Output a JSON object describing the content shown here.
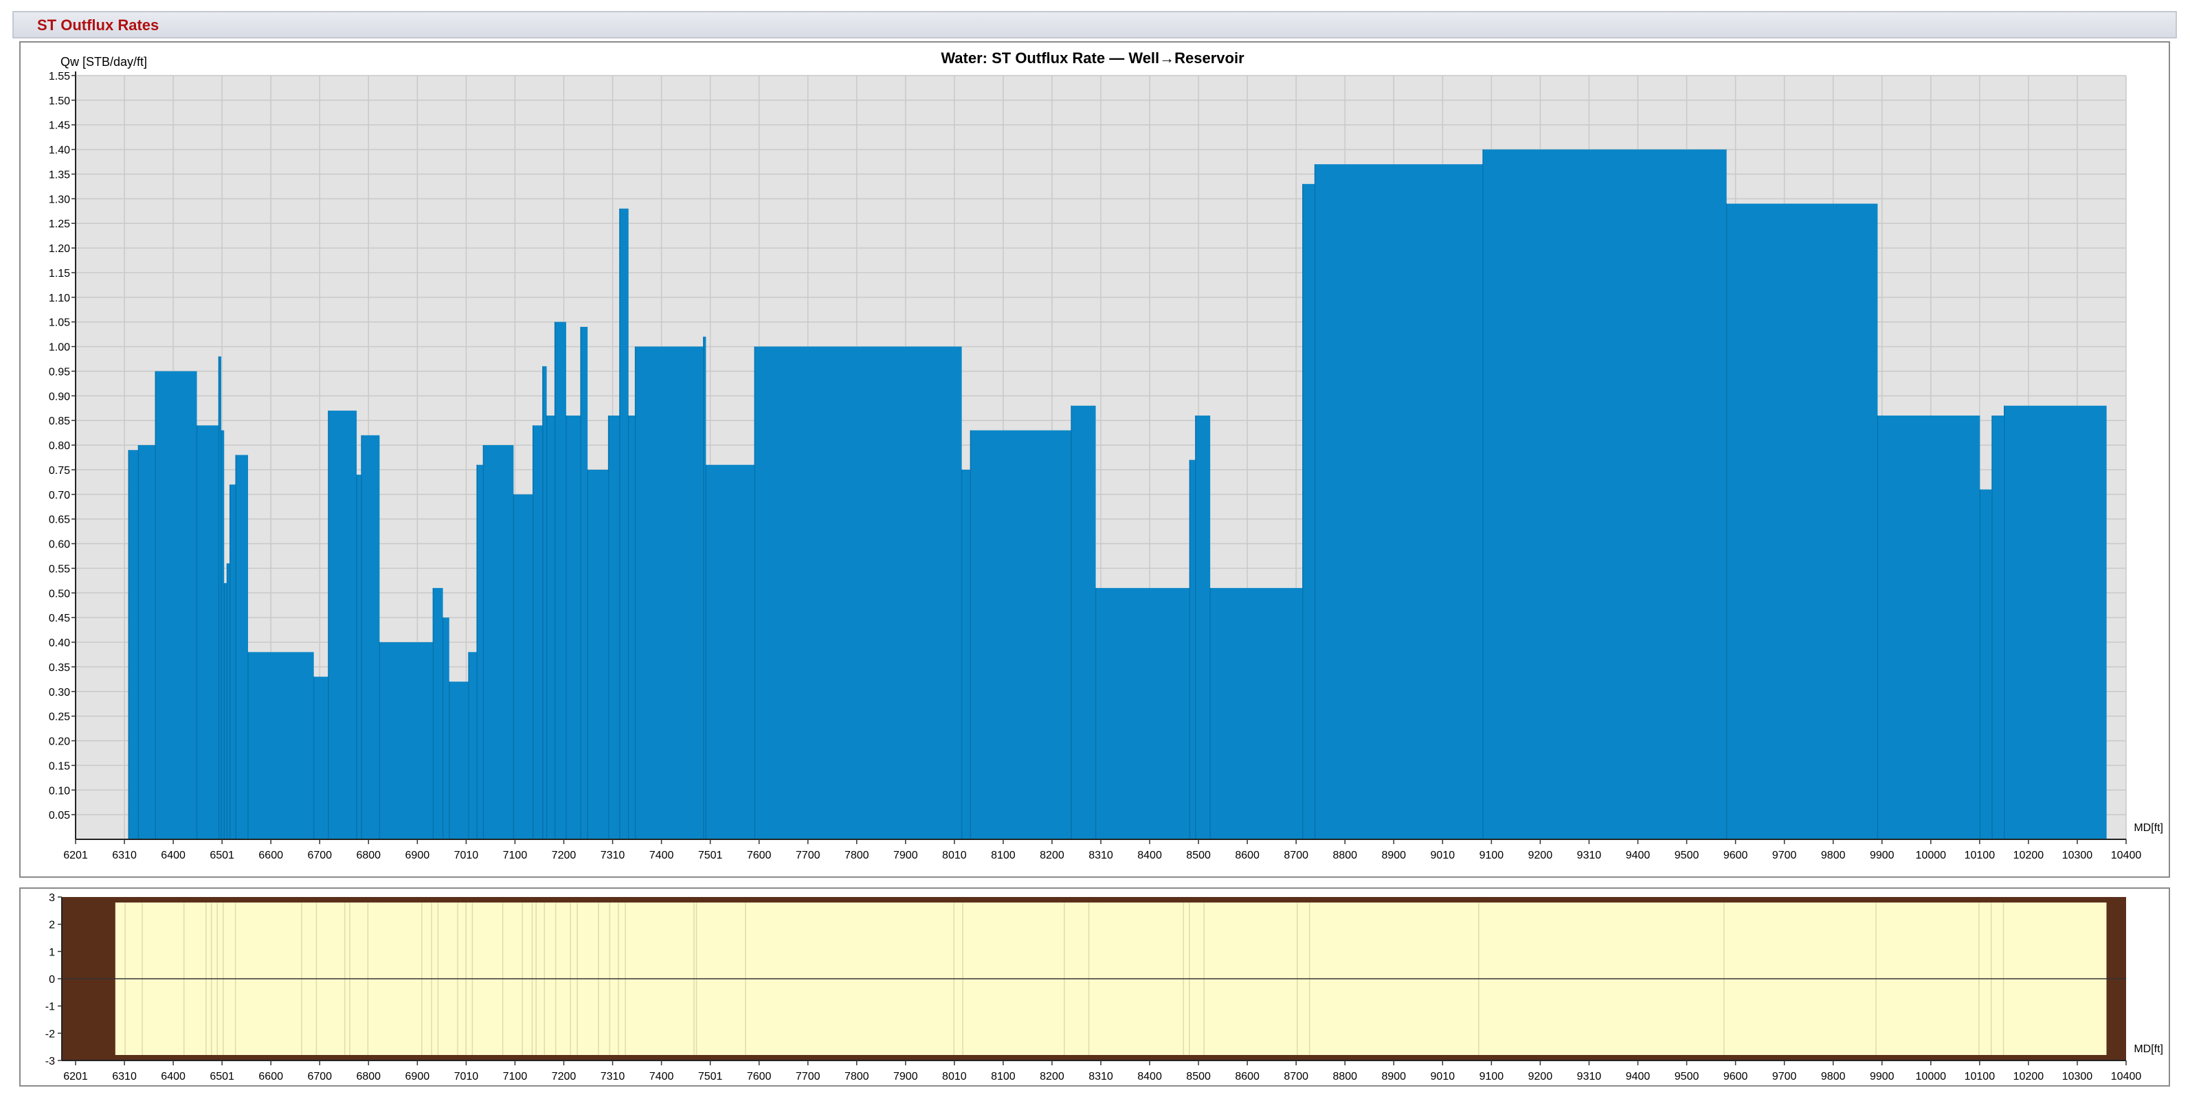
{
  "panel": {
    "title": "ST Outflux Rates"
  },
  "colors": {
    "bar": "#0a86c8",
    "bar_edge": "#0672ae",
    "plot_bg": "#e3e3e3",
    "grid": "#c9c9c9",
    "title_red": "#b01010",
    "mini_bg": "#fffccc",
    "mini_border": "#5a2f1a",
    "mini_shadow": "#3c3c3c"
  },
  "chart_data": [
    {
      "type": "bar",
      "title": "Water: ST Outflux Rate — Well→Reservoir",
      "ylabel": "Qw [STB/day/ft]",
      "xlabel": "MD[ft]",
      "ylim": [
        0,
        1.55
      ],
      "xlim": [
        6201,
        10410
      ],
      "grid": true,
      "y_ticks": [
        "0.05",
        "0.10",
        "0.15",
        "0.20",
        "0.25",
        "0.30",
        "0.35",
        "0.40",
        "0.45",
        "0.50",
        "0.55",
        "0.60",
        "0.65",
        "0.70",
        "0.75",
        "0.80",
        "0.85",
        "0.90",
        "0.95",
        "1.00",
        "1.05",
        "1.10",
        "1.15",
        "1.20",
        "1.25",
        "1.30",
        "1.35",
        "1.40",
        "1.45",
        "1.50",
        "1.55"
      ],
      "x_ticks": [
        "6201",
        "6310",
        "6400",
        "6501",
        "6600",
        "6700",
        "6800",
        "6900",
        "7010",
        "7100",
        "7200",
        "7310",
        "7400",
        "7501",
        "7600",
        "7700",
        "7800",
        "7900",
        "8010",
        "8100",
        "8200",
        "8310",
        "8400",
        "8500",
        "8600",
        "8700",
        "8800",
        "8900",
        "9010",
        "9100",
        "9200",
        "9310",
        "9400",
        "9500",
        "9600",
        "9700",
        "9800",
        "9900",
        "10000",
        "10100",
        "10200",
        "10300",
        "10400"
      ],
      "segments": [
        {
          "x0": 6310,
          "x1": 6330,
          "value": 0.79
        },
        {
          "x0": 6330,
          "x1": 6365,
          "value": 0.8
        },
        {
          "x0": 6365,
          "x1": 6450,
          "value": 0.95
        },
        {
          "x0": 6450,
          "x1": 6495,
          "value": 0.84
        },
        {
          "x0": 6495,
          "x1": 6500,
          "value": 0.98
        },
        {
          "x0": 6500,
          "x1": 6506,
          "value": 0.83
        },
        {
          "x0": 6506,
          "x1": 6512,
          "value": 0.52
        },
        {
          "x0": 6512,
          "x1": 6518,
          "value": 0.56
        },
        {
          "x0": 6518,
          "x1": 6530,
          "value": 0.72
        },
        {
          "x0": 6530,
          "x1": 6555,
          "value": 0.78
        },
        {
          "x0": 6555,
          "x1": 6690,
          "value": 0.38
        },
        {
          "x0": 6690,
          "x1": 6720,
          "value": 0.33
        },
        {
          "x0": 6720,
          "x1": 6778,
          "value": 0.87
        },
        {
          "x0": 6778,
          "x1": 6788,
          "value": 0.74
        },
        {
          "x0": 6788,
          "x1": 6825,
          "value": 0.82
        },
        {
          "x0": 6825,
          "x1": 6935,
          "value": 0.4
        },
        {
          "x0": 6935,
          "x1": 6955,
          "value": 0.51
        },
        {
          "x0": 6955,
          "x1": 6968,
          "value": 0.45
        },
        {
          "x0": 6968,
          "x1": 7008,
          "value": 0.32
        },
        {
          "x0": 7008,
          "x1": 7025,
          "value": 0.38
        },
        {
          "x0": 7025,
          "x1": 7038,
          "value": 0.76
        },
        {
          "x0": 7038,
          "x1": 7100,
          "value": 0.8
        },
        {
          "x0": 7100,
          "x1": 7140,
          "value": 0.7
        },
        {
          "x0": 7140,
          "x1": 7160,
          "value": 0.84
        },
        {
          "x0": 7160,
          "x1": 7168,
          "value": 0.96
        },
        {
          "x0": 7168,
          "x1": 7185,
          "value": 0.86
        },
        {
          "x0": 7185,
          "x1": 7208,
          "value": 1.05
        },
        {
          "x0": 7208,
          "x1": 7238,
          "value": 0.86
        },
        {
          "x0": 7238,
          "x1": 7252,
          "value": 1.04
        },
        {
          "x0": 7252,
          "x1": 7295,
          "value": 0.75
        },
        {
          "x0": 7295,
          "x1": 7318,
          "value": 0.86
        },
        {
          "x0": 7318,
          "x1": 7336,
          "value": 1.28
        },
        {
          "x0": 7336,
          "x1": 7350,
          "value": 0.86
        },
        {
          "x0": 7350,
          "x1": 7490,
          "value": 1.0
        },
        {
          "x0": 7490,
          "x1": 7495,
          "value": 1.02
        },
        {
          "x0": 7495,
          "x1": 7595,
          "value": 0.76
        },
        {
          "x0": 7595,
          "x1": 8020,
          "value": 1.0
        },
        {
          "x0": 8020,
          "x1": 8038,
          "value": 0.75
        },
        {
          "x0": 8038,
          "x1": 8245,
          "value": 0.83
        },
        {
          "x0": 8245,
          "x1": 8295,
          "value": 0.88
        },
        {
          "x0": 8295,
          "x1": 8488,
          "value": 0.51
        },
        {
          "x0": 8488,
          "x1": 8500,
          "value": 0.77
        },
        {
          "x0": 8500,
          "x1": 8530,
          "value": 0.86
        },
        {
          "x0": 8530,
          "x1": 8720,
          "value": 0.51
        },
        {
          "x0": 8720,
          "x1": 8745,
          "value": 1.33
        },
        {
          "x0": 8745,
          "x1": 9090,
          "value": 1.37
        },
        {
          "x0": 9090,
          "x1": 9590,
          "value": 1.4
        },
        {
          "x0": 9590,
          "x1": 9900,
          "value": 1.29
        },
        {
          "x0": 9900,
          "x1": 10110,
          "value": 0.86
        },
        {
          "x0": 10110,
          "x1": 10135,
          "value": 0.71
        },
        {
          "x0": 10135,
          "x1": 10160,
          "value": 0.86
        },
        {
          "x0": 10160,
          "x1": 10370,
          "value": 0.88
        }
      ]
    },
    {
      "type": "strip",
      "xlabel": "MD[ft]",
      "ylim": [
        -3,
        3
      ],
      "y_ticks": [
        "3",
        "2",
        "1",
        "0",
        "-1",
        "-2",
        "-3"
      ],
      "x_ticks": [
        "6201",
        "6310",
        "6400",
        "6501",
        "6600",
        "6700",
        "6800",
        "6900",
        "7010",
        "7100",
        "7200",
        "7310",
        "7400",
        "7501",
        "7600",
        "7700",
        "7800",
        "7900",
        "8010",
        "8100",
        "8200",
        "8310",
        "8400",
        "8500",
        "8600",
        "8700",
        "8800",
        "8900",
        "9010",
        "9100",
        "9200",
        "9310",
        "9400",
        "9500",
        "9600",
        "9700",
        "9800",
        "9900",
        "10000",
        "10100",
        "10200",
        "10300",
        "10400"
      ],
      "lines_md": [
        6330,
        6365,
        6450,
        6495,
        6506,
        6518,
        6530,
        6555,
        6690,
        6720,
        6778,
        6788,
        6825,
        6935,
        6955,
        6968,
        7008,
        7025,
        7038,
        7100,
        7140,
        7160,
        7168,
        7185,
        7208,
        7238,
        7252,
        7295,
        7318,
        7336,
        7350,
        7490,
        7495,
        7595,
        8020,
        8038,
        8245,
        8295,
        8488,
        8500,
        8530,
        8720,
        8745,
        9090,
        9590,
        9900,
        10110,
        10135,
        10160
      ]
    }
  ]
}
